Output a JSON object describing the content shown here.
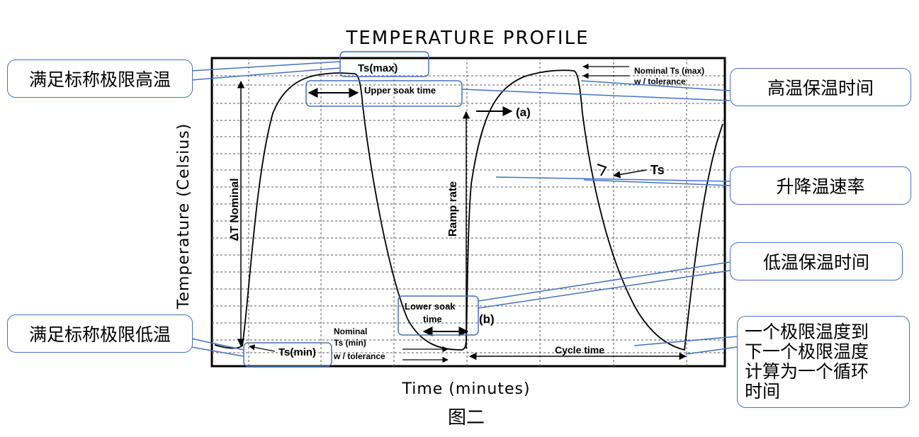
{
  "chart": {
    "title": "TEMPERATURE PROFILE",
    "x_label": "Time (minutes)",
    "y_label": "Temperature (Celsius)",
    "caption": "图二"
  },
  "annotations": {
    "ts_max": "Ts(max)",
    "upper_soak": "Upper soak time",
    "nominal_ts_max_1": "Nominal Ts (max)",
    "nominal_ts_max_2": "w / tolerance",
    "marker_a": "(a)",
    "marker_b": "(b)",
    "ts_rate": "Ts",
    "delta_t": "ΔT Nominal",
    "ramp_rate": "Ramp rate",
    "lower_soak_1": "Lower soak",
    "lower_soak_2": "time",
    "ts_min": "Ts(min)",
    "nominal_ts_min_1": "Nominal",
    "nominal_ts_min_2": "Ts (min)",
    "nominal_ts_min_3": "w / tolerance",
    "cycle_time": "Cycle time"
  },
  "callouts": {
    "max_temp": "满足标称极限高温",
    "min_temp": "满足标称极限低温",
    "high_soak": "高温保温时间",
    "ramp": "升降温速率",
    "low_soak": "低温保温时间",
    "cycle": "一个极限温度到\n下一个极限温度\n计算为一个循环\n时间"
  },
  "colors": {
    "callout_border": "#4472c4",
    "line": "#000000",
    "grid": "#555555"
  }
}
